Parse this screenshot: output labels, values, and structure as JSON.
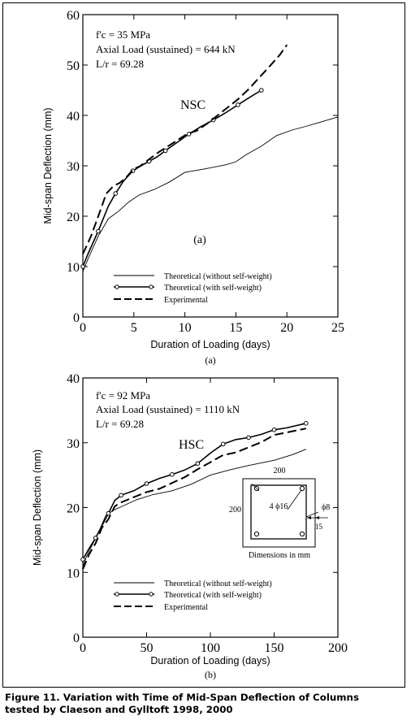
{
  "caption": {
    "line1": "Figure 11. Variation with Time of Mid-Span Deflection of Columns",
    "line2": "tested by Claeson and Gylltoft 1998, 2000"
  },
  "chart_data": [
    {
      "type": "line",
      "panel_label": "(a)",
      "xlabel": "Duration of Loading (days)",
      "ylabel": "Mid-span Deflection (mm)",
      "xlim": [
        0,
        25
      ],
      "ylim": [
        0,
        60
      ],
      "xticks": [
        0,
        5,
        10,
        15,
        20,
        25
      ],
      "yticks": [
        0,
        10,
        20,
        30,
        40,
        50,
        60
      ],
      "xtick_labels": [
        "0",
        "5",
        "10",
        "15",
        "20",
        "25"
      ],
      "ytick_labels": [
        "0",
        "10",
        "20",
        "30",
        "40",
        "50",
        "60"
      ],
      "annotations": {
        "fc": "f'c = 35 MPa",
        "load": "Axial Load  (sustained) = 644 kN",
        "lr": "L/r = 69.28",
        "label": "NSC",
        "inner_label": "(a)"
      },
      "legend": [
        "Theoretical (without self-weight)",
        "Theoretical (with self-weight)",
        "Experimental"
      ],
      "legend_position": "bottom-center",
      "series": [
        {
          "name": "Theoretical (without self-weight)",
          "style": "solid",
          "x": [
            0,
            0.5,
            1.5,
            2.5,
            3.5,
            4.5,
            5.5,
            7,
            8.5,
            10,
            12,
            14,
            15,
            16,
            17.5,
            19,
            20.5,
            22,
            23.5,
            25
          ],
          "y": [
            9,
            11.5,
            16,
            19.5,
            21,
            22.8,
            24.2,
            25.3,
            26.8,
            28.7,
            29.4,
            30.2,
            30.8,
            32.2,
            33.9,
            36.0,
            37.1,
            37.9,
            38.8,
            39.7
          ]
        },
        {
          "name": "Theoretical (with self-weight)",
          "style": "solid-circle",
          "x": [
            0,
            0.5,
            1.5,
            2.5,
            3.2,
            4,
            4.9,
            5.7,
            6.5,
            7.3,
            8.1,
            9.2,
            10.4,
            11.6,
            12.8,
            13.9,
            15.2,
            16.2,
            17.5
          ],
          "y": [
            10,
            12.5,
            17,
            22,
            24.5,
            27,
            29,
            30,
            30.9,
            31.8,
            33,
            34.6,
            36.3,
            37.8,
            39.1,
            40.4,
            42.1,
            43.4,
            45
          ]
        },
        {
          "name": "Experimental",
          "style": "dashed",
          "x": [
            0,
            0.8,
            1.6,
            2.3,
            3,
            3.6,
            4.2,
            5,
            5.6,
            6.5,
            7.5,
            8.3,
            9.2,
            10.2,
            11.2,
            12.2,
            13.2,
            14.2,
            15.2,
            16.2,
            17.2,
            18.2,
            19.3,
            20
          ],
          "y": [
            12.5,
            16,
            20.5,
            24.5,
            26,
            26.6,
            27.6,
            29.4,
            29.9,
            31.3,
            32.8,
            33.8,
            35.0,
            36.3,
            37.0,
            38.4,
            40.0,
            41.6,
            43.2,
            45.1,
            47.3,
            49.5,
            52.0,
            54
          ]
        }
      ]
    },
    {
      "type": "line",
      "panel_label": "(b)",
      "xlabel": "Duration of Loading (days)",
      "ylabel": "Mid-span Deflection (mm)",
      "xlim": [
        0,
        200
      ],
      "ylim": [
        0,
        40
      ],
      "xticks": [
        0,
        50,
        100,
        150,
        200
      ],
      "yticks": [
        0,
        10,
        20,
        30,
        40
      ],
      "xtick_labels": [
        "0",
        "50",
        "100",
        "150",
        "200"
      ],
      "ytick_labels": [
        "0",
        "10",
        "20",
        "30",
        "40"
      ],
      "annotations": {
        "fc": "f'c = 92 MPa",
        "load": "Axial Load  (sustained) = 1110 kN",
        "lr": "L/r = 69.28",
        "label": "HSC"
      },
      "inset": {
        "top_dim": "200",
        "left_dim": "200",
        "bar_label": "4 ϕ16",
        "tie_label": "ϕ8",
        "cover": "15",
        "units": "Dimensions in mm"
      },
      "legend": [
        "Theoretical (without self-weight)",
        "Theoretical (with self-weight)",
        "Experimental"
      ],
      "legend_position": "bottom-center",
      "series": [
        {
          "name": "Theoretical (without self-weight)",
          "style": "solid",
          "x": [
            0,
            3,
            8,
            13,
            18,
            24,
            32,
            42,
            55,
            70,
            85,
            100,
            115,
            130,
            150,
            165,
            175
          ],
          "y": [
            11,
            12.5,
            14.5,
            16.5,
            18.8,
            19.6,
            20.3,
            21.2,
            22,
            22.6,
            23.6,
            25,
            25.8,
            26.5,
            27.3,
            28.2,
            29
          ]
        },
        {
          "name": "Theoretical (with self-weight)",
          "style": "solid-circle",
          "x": [
            0,
            5,
            10,
            15,
            20,
            25,
            30,
            40,
            50,
            60,
            70,
            80,
            90,
            100,
            110,
            120,
            130,
            140,
            150,
            160,
            175
          ],
          "y": [
            12,
            13.7,
            15.3,
            17.2,
            19.1,
            21.1,
            21.9,
            22.6,
            23.7,
            24.5,
            25.1,
            25.8,
            26.8,
            28.4,
            29.8,
            30.5,
            30.8,
            31.3,
            32.0,
            32.3,
            33
          ]
        },
        {
          "name": "Experimental",
          "style": "dashed",
          "x": [
            0,
            5,
            10,
            15,
            20,
            25,
            30,
            40,
            50,
            60,
            70,
            80,
            90,
            100,
            110,
            120,
            130,
            140,
            150,
            160,
            175
          ],
          "y": [
            10.5,
            12.8,
            14.5,
            16.9,
            18.2,
            20.2,
            20.8,
            21.6,
            22.4,
            22.9,
            23.8,
            24.7,
            25.9,
            27.0,
            28.1,
            28.5,
            29.3,
            30.1,
            31.2,
            31.6,
            32.2
          ]
        }
      ]
    }
  ]
}
